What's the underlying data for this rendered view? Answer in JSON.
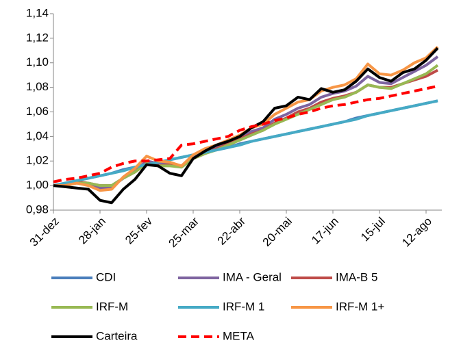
{
  "chart_data": {
    "type": "line",
    "categories": [
      "31-dez",
      null,
      null,
      null,
      "28-jan",
      null,
      null,
      null,
      "25-fev",
      null,
      null,
      null,
      "25-mar",
      null,
      null,
      null,
      "22-abr",
      null,
      null,
      null,
      "20-mai",
      null,
      null,
      null,
      "17-jun",
      null,
      null,
      null,
      "15-jul",
      null,
      null,
      null,
      "12-ago",
      null
    ],
    "ylim": [
      0.98,
      1.14
    ],
    "yticks": [
      {
        "value": 0.98,
        "label": "0,98"
      },
      {
        "value": 1.0,
        "label": "1,00"
      },
      {
        "value": 1.02,
        "label": "1,02"
      },
      {
        "value": 1.04,
        "label": "1,04"
      },
      {
        "value": 1.06,
        "label": "1,06"
      },
      {
        "value": 1.08,
        "label": "1,08"
      },
      {
        "value": 1.1,
        "label": "1,10"
      },
      {
        "value": 1.12,
        "label": "1,12"
      },
      {
        "value": 1.14,
        "label": "1,14"
      }
    ],
    "grid": false,
    "legend": "bottom",
    "series": [
      {
        "name": "CDI",
        "color": "#4a7ebb",
        "dash": "solid",
        "values": [
          1.0,
          1.002,
          1.004,
          1.006,
          1.008,
          1.01,
          1.013,
          1.015,
          1.017,
          1.019,
          1.021,
          1.023,
          1.025,
          1.027,
          1.029,
          1.031,
          1.034,
          1.036,
          1.038,
          1.04,
          1.042,
          1.044,
          1.046,
          1.048,
          1.05,
          1.052,
          1.055,
          1.057,
          1.059,
          1.061,
          1.063,
          1.065,
          1.067,
          1.069
        ]
      },
      {
        "name": "IMA - Geral",
        "color": "#7e64a0",
        "dash": "solid",
        "values": [
          1.0,
          1.001,
          1.002,
          1.001,
          0.998,
          0.999,
          1.006,
          1.012,
          1.02,
          1.018,
          1.018,
          1.016,
          1.024,
          1.028,
          1.031,
          1.035,
          1.039,
          1.044,
          1.047,
          1.054,
          1.058,
          1.063,
          1.066,
          1.072,
          1.075,
          1.077,
          1.081,
          1.089,
          1.084,
          1.083,
          1.088,
          1.093,
          1.098,
          1.105
        ]
      },
      {
        "name": "IMA-B 5",
        "color": "#be4b48",
        "dash": "solid",
        "values": [
          1.0,
          1.001,
          1.003,
          1.002,
          1.0,
          1.0,
          1.006,
          1.011,
          1.018,
          1.016,
          1.017,
          1.016,
          1.022,
          1.026,
          1.03,
          1.034,
          1.038,
          1.042,
          1.045,
          1.051,
          1.055,
          1.06,
          1.063,
          1.068,
          1.071,
          1.073,
          1.076,
          1.082,
          1.08,
          1.08,
          1.083,
          1.086,
          1.089,
          1.094
        ]
      },
      {
        "name": "IRF-M",
        "color": "#98b954",
        "dash": "solid",
        "values": [
          1.0,
          1.001,
          1.002,
          1.002,
          1.0,
          1.0,
          1.006,
          1.011,
          1.018,
          1.016,
          1.016,
          1.015,
          1.022,
          1.026,
          1.029,
          1.033,
          1.037,
          1.041,
          1.045,
          1.05,
          1.054,
          1.058,
          1.062,
          1.066,
          1.07,
          1.072,
          1.076,
          1.082,
          1.08,
          1.079,
          1.083,
          1.087,
          1.091,
          1.098
        ]
      },
      {
        "name": "IRF-M 1",
        "color": "#46aac5",
        "dash": "solid",
        "values": [
          1.0,
          1.002,
          1.004,
          1.006,
          1.008,
          1.01,
          1.012,
          1.015,
          1.017,
          1.019,
          1.021,
          1.023,
          1.025,
          1.027,
          1.029,
          1.031,
          1.033,
          1.036,
          1.038,
          1.04,
          1.042,
          1.044,
          1.046,
          1.048,
          1.05,
          1.052,
          1.054,
          1.057,
          1.059,
          1.061,
          1.063,
          1.065,
          1.067,
          1.069
        ]
      },
      {
        "name": "IRF-M 1+",
        "color": "#f79646",
        "dash": "solid",
        "values": [
          1.0,
          1.0,
          1.002,
          1.0,
          0.996,
          0.997,
          1.007,
          1.014,
          1.024,
          1.02,
          1.019,
          1.016,
          1.025,
          1.03,
          1.033,
          1.037,
          1.041,
          1.047,
          1.05,
          1.058,
          1.063,
          1.068,
          1.07,
          1.077,
          1.08,
          1.082,
          1.087,
          1.099,
          1.091,
          1.09,
          1.094,
          1.1,
          1.104,
          1.113
        ]
      },
      {
        "name": "Carteira",
        "color": "#000000",
        "dash": "solid",
        "values": [
          1.0,
          0.999,
          0.998,
          0.997,
          0.988,
          0.986,
          0.997,
          1.005,
          1.017,
          1.016,
          1.01,
          1.008,
          1.022,
          1.028,
          1.033,
          1.036,
          1.04,
          1.047,
          1.052,
          1.063,
          1.065,
          1.072,
          1.07,
          1.079,
          1.076,
          1.078,
          1.085,
          1.095,
          1.088,
          1.085,
          1.092,
          1.095,
          1.102,
          1.112
        ]
      },
      {
        "name": "META",
        "color": "#ff0000",
        "dash": "dashed",
        "values": [
          1.003,
          1.005,
          1.006,
          1.008,
          1.01,
          1.015,
          1.018,
          1.02,
          1.02,
          1.021,
          1.022,
          1.033,
          1.034,
          1.036,
          1.038,
          1.04,
          1.045,
          1.048,
          1.05,
          1.053,
          1.055,
          1.058,
          1.06,
          1.063,
          1.065,
          1.066,
          1.068,
          1.07,
          1.071,
          1.073,
          1.075,
          1.077,
          1.079,
          1.081
        ]
      }
    ]
  }
}
